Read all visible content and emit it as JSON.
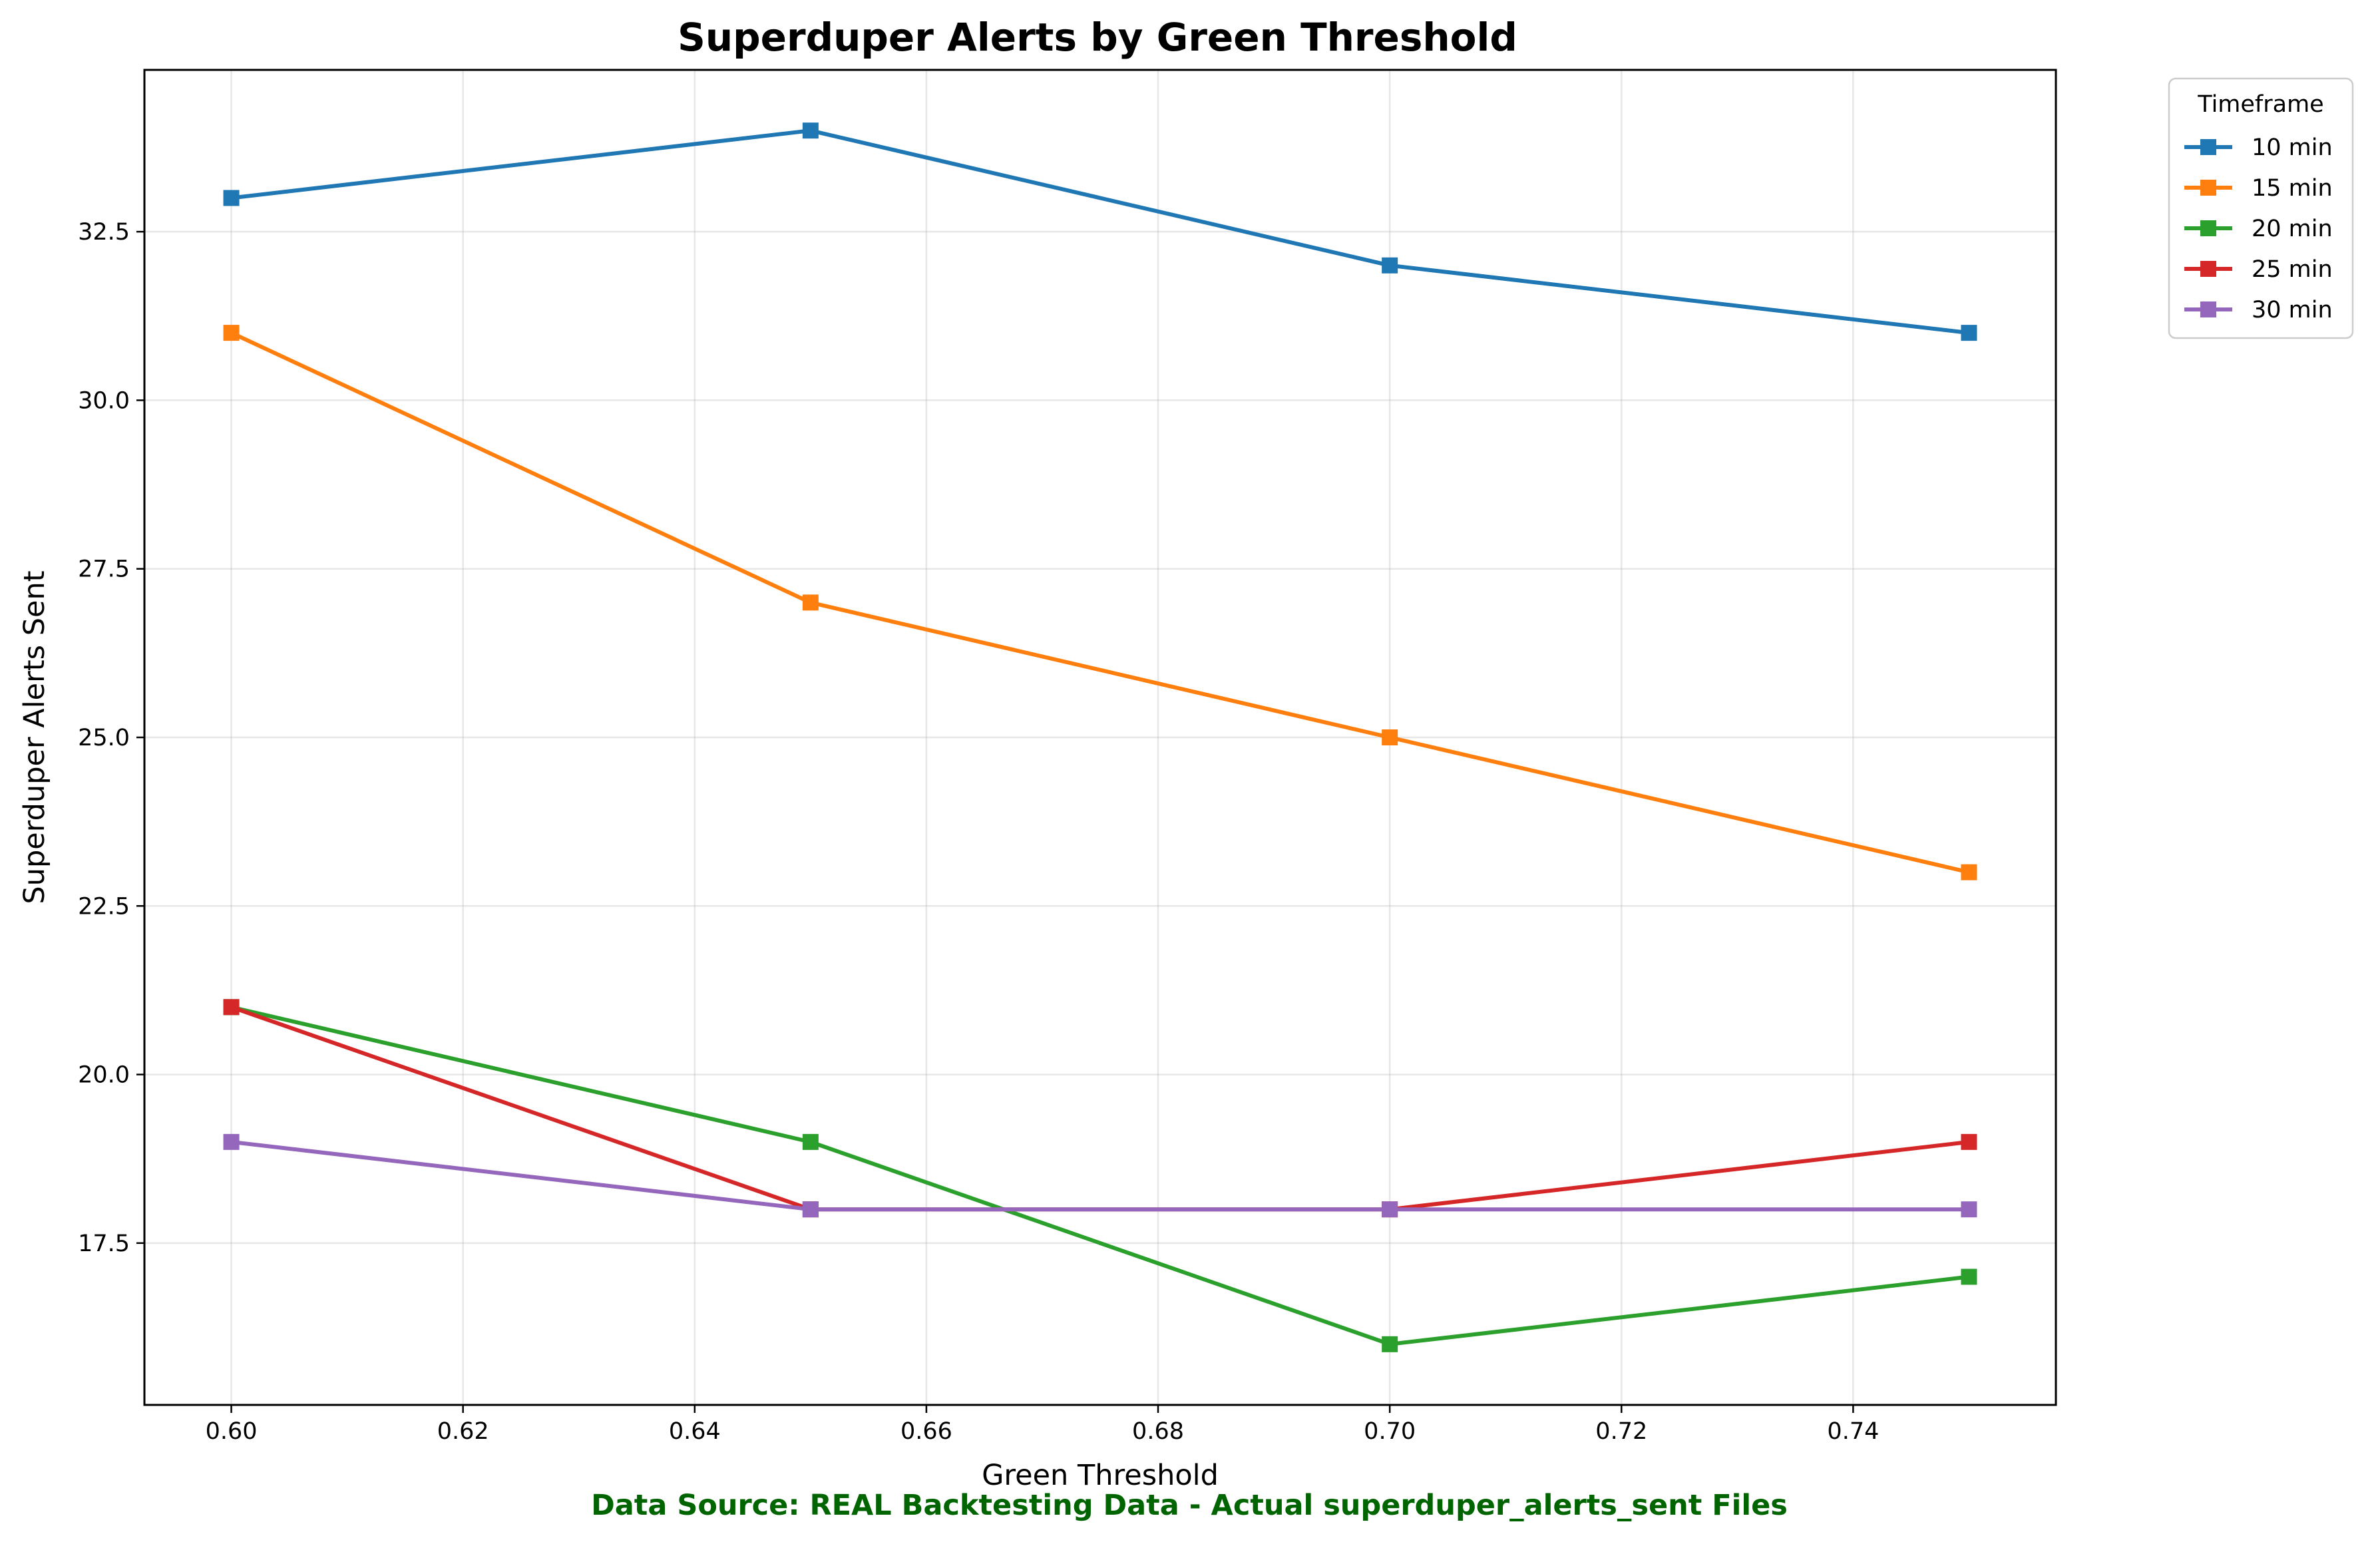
{
  "chart_data": {
    "type": "line",
    "title": "Superduper Alerts by Green Threshold",
    "xlabel": "Green Threshold",
    "ylabel": "Superduper Alerts Sent",
    "x": [
      0.6,
      0.65,
      0.7,
      0.75
    ],
    "xlim": [
      0.5925,
      0.7575
    ],
    "ylim": [
      15.1,
      34.9
    ],
    "xticks": [
      "0.60",
      "0.62",
      "0.64",
      "0.66",
      "0.68",
      "0.70",
      "0.72",
      "0.74"
    ],
    "yticks": [
      "17.5",
      "20.0",
      "22.5",
      "25.0",
      "27.5",
      "30.0",
      "32.5"
    ],
    "grid": true,
    "legend": {
      "title": "Timeframe",
      "placement": "outside-top-right"
    },
    "series": [
      {
        "name": "10 min",
        "color": "#1f77b4",
        "values": [
          33,
          34,
          32,
          31
        ]
      },
      {
        "name": "15 min",
        "color": "#ff7f0e",
        "values": [
          31,
          27,
          25,
          23
        ]
      },
      {
        "name": "20 min",
        "color": "#2ca02c",
        "values": [
          21,
          19,
          16,
          17
        ]
      },
      {
        "name": "25 min",
        "color": "#d62728",
        "values": [
          21,
          18,
          18,
          19
        ]
      },
      {
        "name": "30 min",
        "color": "#9467bd",
        "values": [
          19,
          18,
          18,
          18
        ]
      }
    ],
    "marker": "square"
  },
  "footer": {
    "source_text": "Data Source: REAL Backtesting Data - Actual superduper_alerts_sent Files",
    "source_color": "#006400"
  }
}
